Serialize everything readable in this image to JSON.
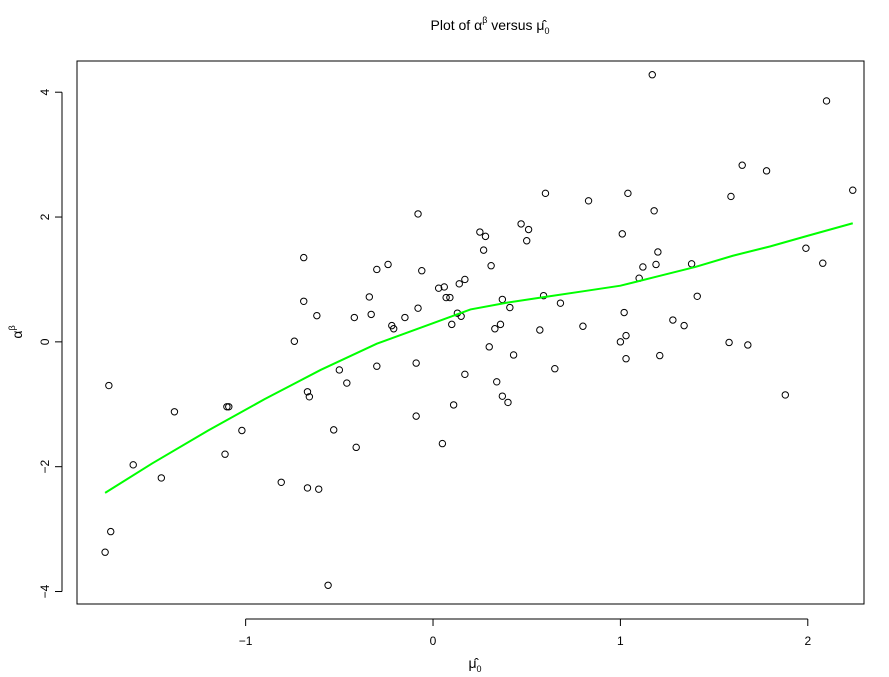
{
  "chart_data": {
    "type": "scatter",
    "title": {
      "prefix": "Plot of ",
      "alpha": "α",
      "alpha_sup": "β",
      "middle": " versus ",
      "mu": "μ̂",
      "mu_sub": "0"
    },
    "xlabel": {
      "mu": "μ̂",
      "mu_sub": "0"
    },
    "ylabel": {
      "alpha": "α",
      "alpha_sup": "β"
    },
    "xlim": [
      -1.9,
      2.3
    ],
    "ylim": [
      -4.2,
      4.5
    ],
    "x_ticks": [
      -1,
      0,
      1,
      2
    ],
    "x_tick_labels": [
      "−1",
      "0",
      "1",
      "2"
    ],
    "y_ticks": [
      -4,
      -2,
      0,
      2,
      4
    ],
    "y_tick_labels": [
      "−4",
      "−2",
      "0",
      "2",
      "4"
    ],
    "grid": false,
    "points": [
      [
        -1.75,
        -3.37
      ],
      [
        -1.73,
        -0.7
      ],
      [
        -1.72,
        -3.04
      ],
      [
        -1.6,
        -1.97
      ],
      [
        -1.45,
        -2.18
      ],
      [
        -1.38,
        -1.12
      ],
      [
        -1.11,
        -1.8
      ],
      [
        -1.1,
        -1.04
      ],
      [
        -1.09,
        -1.04
      ],
      [
        -1.02,
        -1.42
      ],
      [
        -0.81,
        -2.25
      ],
      [
        -0.74,
        0.01
      ],
      [
        -0.69,
        1.35
      ],
      [
        -0.69,
        0.65
      ],
      [
        -0.67,
        -0.8
      ],
      [
        -0.67,
        -2.34
      ],
      [
        -0.66,
        -0.88
      ],
      [
        -0.62,
        0.42
      ],
      [
        -0.61,
        -2.36
      ],
      [
        -0.56,
        -3.9
      ],
      [
        -0.53,
        -1.41
      ],
      [
        -0.5,
        -0.45
      ],
      [
        -0.46,
        -0.66
      ],
      [
        -0.42,
        0.39
      ],
      [
        -0.41,
        -1.69
      ],
      [
        -0.34,
        0.72
      ],
      [
        -0.33,
        0.44
      ],
      [
        -0.3,
        1.16
      ],
      [
        -0.3,
        -0.39
      ],
      [
        -0.24,
        1.24
      ],
      [
        -0.22,
        0.26
      ],
      [
        -0.21,
        0.21
      ],
      [
        -0.15,
        0.39
      ],
      [
        -0.09,
        -0.34
      ],
      [
        -0.09,
        -1.19
      ],
      [
        -0.08,
        0.54
      ],
      [
        -0.08,
        2.05
      ],
      [
        -0.06,
        1.14
      ],
      [
        0.03,
        0.86
      ],
      [
        0.05,
        -1.63
      ],
      [
        0.06,
        0.88
      ],
      [
        0.07,
        0.71
      ],
      [
        0.09,
        0.71
      ],
      [
        0.1,
        0.28
      ],
      [
        0.11,
        -1.01
      ],
      [
        0.13,
        0.46
      ],
      [
        0.14,
        0.93
      ],
      [
        0.15,
        0.41
      ],
      [
        0.17,
        1.0
      ],
      [
        0.17,
        -0.52
      ],
      [
        0.25,
        1.76
      ],
      [
        0.27,
        1.47
      ],
      [
        0.28,
        1.69
      ],
      [
        0.3,
        -0.08
      ],
      [
        0.31,
        1.22
      ],
      [
        0.33,
        0.21
      ],
      [
        0.34,
        -0.64
      ],
      [
        0.36,
        0.28
      ],
      [
        0.37,
        0.68
      ],
      [
        0.37,
        -0.87
      ],
      [
        0.4,
        -0.97
      ],
      [
        0.41,
        0.55
      ],
      [
        0.43,
        -0.21
      ],
      [
        0.47,
        1.89
      ],
      [
        0.5,
        1.62
      ],
      [
        0.51,
        1.8
      ],
      [
        0.57,
        0.19
      ],
      [
        0.59,
        0.74
      ],
      [
        0.6,
        2.38
      ],
      [
        0.65,
        -0.43
      ],
      [
        0.68,
        0.62
      ],
      [
        0.8,
        0.25
      ],
      [
        0.83,
        2.26
      ],
      [
        1.0,
        0.0
      ],
      [
        1.01,
        1.73
      ],
      [
        1.02,
        0.47
      ],
      [
        1.03,
        0.1
      ],
      [
        1.03,
        -0.27
      ],
      [
        1.04,
        2.38
      ],
      [
        1.1,
        1.02
      ],
      [
        1.12,
        1.2
      ],
      [
        1.17,
        4.28
      ],
      [
        1.18,
        2.1
      ],
      [
        1.19,
        1.24
      ],
      [
        1.2,
        1.44
      ],
      [
        1.21,
        -0.22
      ],
      [
        1.28,
        0.35
      ],
      [
        1.34,
        0.26
      ],
      [
        1.38,
        1.25
      ],
      [
        1.41,
        0.73
      ],
      [
        1.58,
        -0.01
      ],
      [
        1.59,
        2.33
      ],
      [
        1.65,
        2.83
      ],
      [
        1.68,
        -0.05
      ],
      [
        1.78,
        2.74
      ],
      [
        1.88,
        -0.85
      ],
      [
        1.99,
        1.5
      ],
      [
        2.08,
        1.26
      ],
      [
        2.1,
        3.86
      ],
      [
        2.24,
        2.43
      ]
    ],
    "series": [
      {
        "type": "line",
        "color": "#00ff00",
        "x": [
          -1.75,
          -1.5,
          -1.2,
          -0.9,
          -0.6,
          -0.3,
          0.0,
          0.2,
          0.4,
          0.6,
          0.8,
          1.0,
          1.2,
          1.4,
          1.6,
          1.8,
          2.0,
          2.24
        ],
        "y": [
          -2.42,
          -1.95,
          -1.42,
          -0.92,
          -0.45,
          -0.03,
          0.3,
          0.52,
          0.63,
          0.72,
          0.81,
          0.9,
          1.05,
          1.2,
          1.38,
          1.53,
          1.7,
          1.9
        ]
      }
    ],
    "point_color": "#000000"
  }
}
